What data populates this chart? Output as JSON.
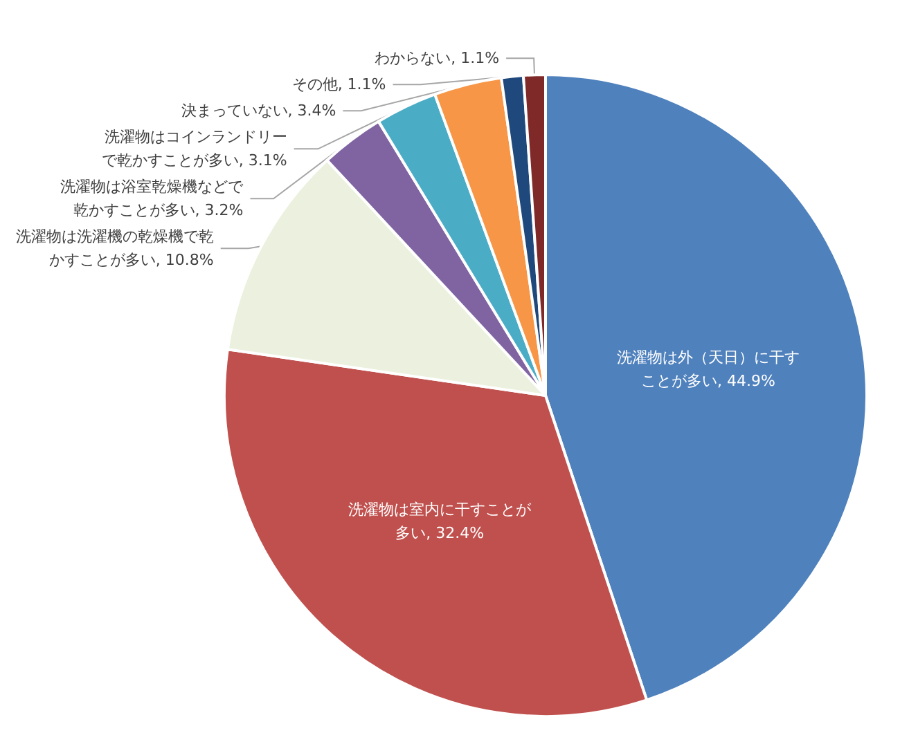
{
  "chart_data": {
    "type": "pie",
    "categories": [
      "洗濯物は外（天日）に干すことが多い",
      "洗濯物は室内に干すことが多い",
      "洗濯物は洗濯機の乾燥機で乾かすことが多い",
      "洗濯物は浴室乾燥機などで乾かすことが多い",
      "洗濯物はコインランドリーで乾かすことが多い",
      "決まっていない",
      "その他",
      "わからない"
    ],
    "values": [
      44.9,
      32.4,
      10.8,
      3.2,
      3.1,
      3.4,
      1.1,
      1.1
    ],
    "colors": [
      "#4f81bd",
      "#c0504d",
      "#ebf1de",
      "#8064a2",
      "#4bacc6",
      "#f79646",
      "#1f497d",
      "#7f2a28"
    ],
    "value_labels": [
      "44.9%",
      "32.4%",
      "10.8%",
      "3.2%",
      "3.1%",
      "3.4%",
      "1.1%",
      "1.1%"
    ],
    "legend": false
  }
}
